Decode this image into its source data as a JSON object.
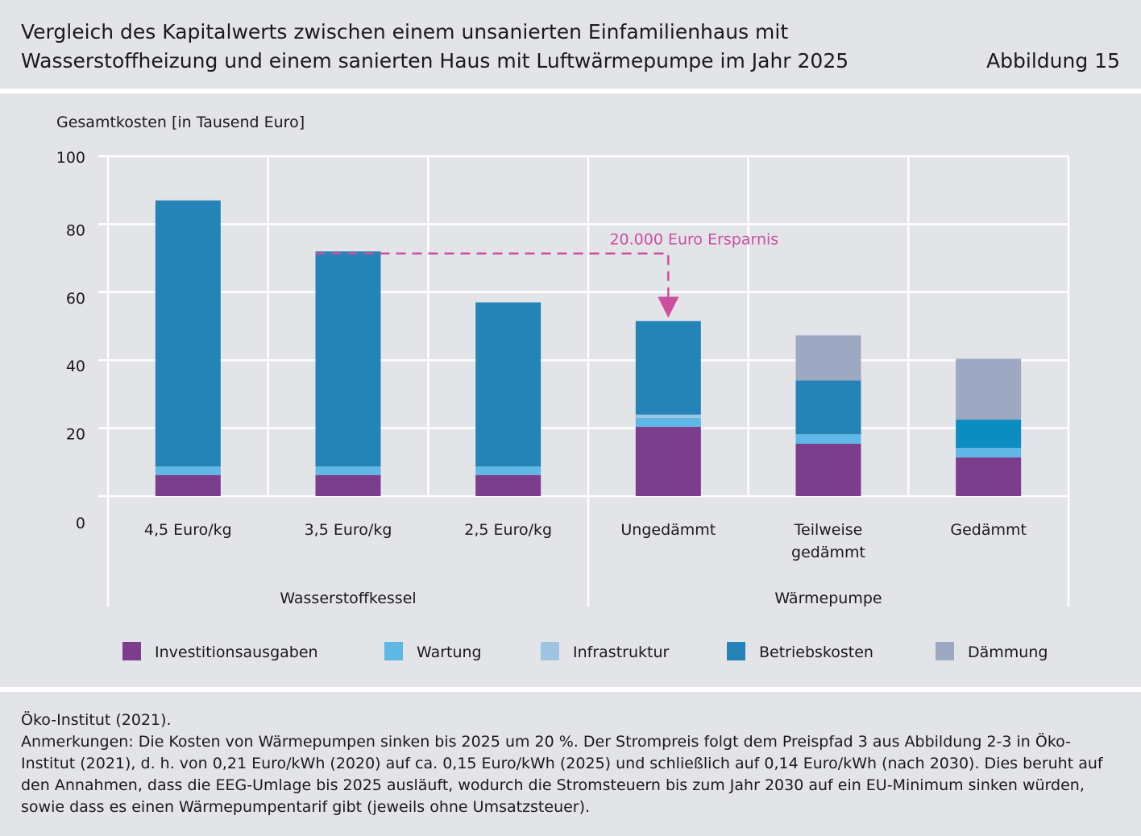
{
  "header": {
    "title_line1": "Vergleich des Kapitalwerts zwischen einem unsanierten Einfamilienhaus mit",
    "title_line2": "Wasserstoffheizung und einem sanierten Haus mit Luftwärmepumpe im Jahr 2025",
    "figure_number": "Abbildung 15"
  },
  "footer": {
    "source": "Öko-Institut (2021).",
    "notes": "Anmerkungen: Die Kosten von Wärmepumpen sinken bis 2025 um 20 %. Der Strompreis folgt dem Preispfad 3 aus Abbildung 2-3 in Öko-Institut (2021), d. h. von 0,21 Euro/kWh (2020) auf ca. 0,15 Euro/kWh (2025) und schließlich auf 0,14 Euro/kWh (nach 2030). Dies beruht auf den Annahmen, dass die EEG-Umlage bis 2025 ausläuft, wodurch die Stromsteuern bis zum Jahr 2030 auf ein EU-Minimum sinken würden, sowie dass es einen Wärmepumpentarif gibt (jeweils ohne Umsatzsteuer)."
  },
  "chart_data": {
    "type": "bar",
    "stacked": true,
    "ylabel": "Gesamtkosten [in Tausend Euro]",
    "ylim": [
      0,
      100
    ],
    "yticks": [
      0,
      20,
      40,
      60,
      80,
      100
    ],
    "categories": [
      [
        "4,5 Euro/kg"
      ],
      [
        "3,5 Euro/kg"
      ],
      [
        "2,5 Euro/kg"
      ],
      [
        "Ungedämmt"
      ],
      [
        "Teilweise",
        "gedämmt"
      ],
      [
        "Gedämmt"
      ]
    ],
    "groups": [
      {
        "label": "Wasserstoffkessel",
        "start": 0,
        "end": 2
      },
      {
        "label": "Wärmepumpe",
        "start": 3,
        "end": 5
      }
    ],
    "series": [
      {
        "name": "Investitionsausgaben",
        "color": "#7a3e8c",
        "values": [
          6.2,
          6.2,
          6.2,
          20.4,
          15.4,
          11.4
        ]
      },
      {
        "name": "Wartung",
        "color": "#5fb7e6",
        "values": [
          2.5,
          2.5,
          2.5,
          2.6,
          2.8,
          2.8
        ]
      },
      {
        "name": "Infrastruktur",
        "color": "#9dc4e2",
        "values": [
          0,
          0,
          0,
          1.0,
          0,
          0
        ]
      },
      {
        "name": "Betriebskosten",
        "color": "#2484b8",
        "values": [
          78.3,
          63.3,
          48.3,
          27.5,
          15.8,
          8.3
        ]
      },
      {
        "name": "Dämmung",
        "color": "#9da8c2",
        "values": [
          0,
          0,
          0,
          0,
          13.3,
          17.9
        ]
      }
    ],
    "series_overrides": [
      {
        "series": 3,
        "category": 5,
        "color": "#0b8dc2"
      }
    ],
    "annotation": {
      "text": "20.000 Euro Ersparnis",
      "color": "#cc4f9e",
      "from_category": 1,
      "to_category": 3,
      "from_value": 71.4,
      "to_value": 52.0
    },
    "grid": true,
    "legend_position": "bottom"
  }
}
